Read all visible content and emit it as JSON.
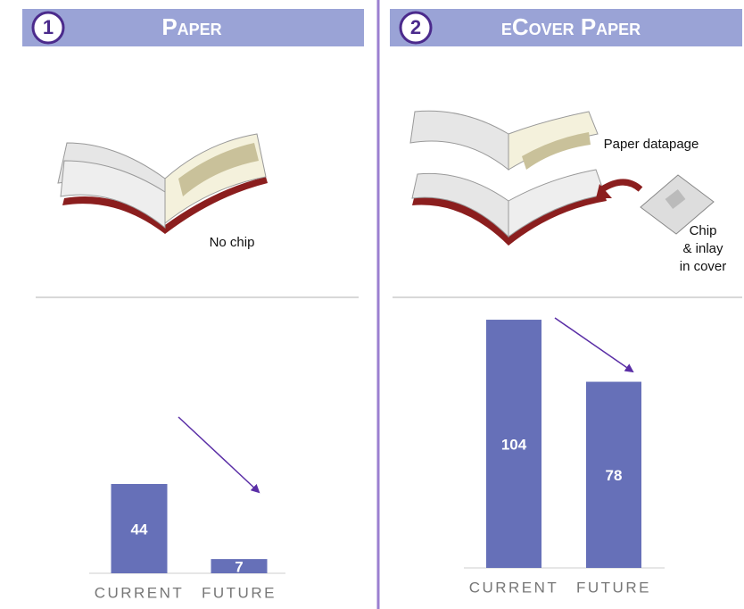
{
  "chart_data": [
    {
      "type": "bar",
      "number": "1",
      "title": "Paper",
      "annotations": [
        "No chip"
      ],
      "categories": [
        "CURRENT",
        "FUTURE"
      ],
      "values": [
        44,
        7
      ],
      "color": "#6670b8",
      "ylim": [
        0,
        110
      ]
    },
    {
      "type": "bar",
      "number": "2",
      "title": "eCover Paper",
      "annotations": [
        "Paper datapage",
        "Chip",
        "& inlay",
        "in cover"
      ],
      "categories": [
        "CURRENT",
        "FUTURE"
      ],
      "values": [
        104,
        78
      ],
      "color": "#6670b8",
      "ylim": [
        0,
        110
      ]
    }
  ]
}
